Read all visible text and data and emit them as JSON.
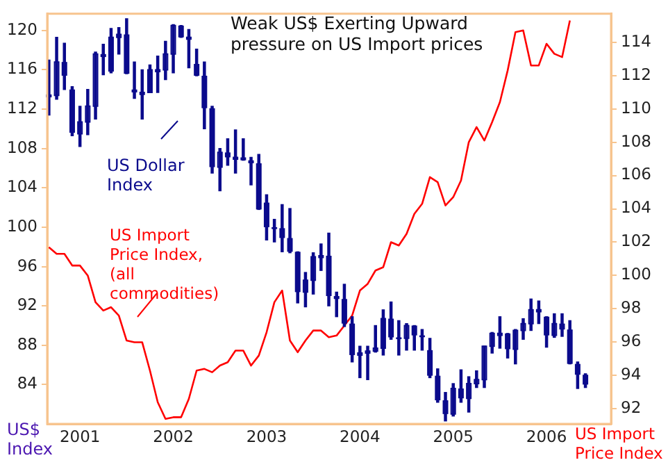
{
  "chart_data": {
    "type": "candlestick",
    "title": "Weak US$ Exerting Upward pressure on US Import prices",
    "ylabel": "US$ Index",
    "y2label": "US Import Price Index",
    "x": [
      "2000-09",
      "2000-10",
      "2000-11",
      "2000-12",
      "2001-01",
      "2001-02",
      "2001-03",
      "2001-04",
      "2001-05",
      "2001-06",
      "2001-07",
      "2001-08",
      "2001-09",
      "2001-10",
      "2001-11",
      "2001-12",
      "2002-01",
      "2002-02",
      "2002-03",
      "2002-04",
      "2002-05",
      "2002-06",
      "2002-07",
      "2002-08",
      "2002-09",
      "2002-10",
      "2002-11",
      "2002-12",
      "2003-01",
      "2003-02",
      "2003-03",
      "2003-04",
      "2003-05",
      "2003-06",
      "2003-07",
      "2003-08",
      "2003-09",
      "2003-10",
      "2003-11",
      "2003-12",
      "2004-01",
      "2004-02",
      "2004-03",
      "2004-04",
      "2004-05",
      "2004-06",
      "2004-07",
      "2004-08",
      "2004-09",
      "2004-10",
      "2004-11",
      "2004-12",
      "2005-01",
      "2005-02",
      "2005-03",
      "2005-04",
      "2005-05",
      "2005-06",
      "2005-07",
      "2005-08",
      "2005-09",
      "2005-10",
      "2005-11",
      "2005-12",
      "2006-01",
      "2006-02",
      "2006-03",
      "2006-04",
      "2006-05",
      "2006-06"
    ],
    "series": [
      {
        "color": "#0a0a8c",
        "ohlc": [
          [
            113.5,
            117.0,
            111.4,
            113.2
          ],
          [
            113.4,
            119.3,
            113.0,
            116.8
          ],
          [
            116.8,
            118.7,
            114.0,
            115.4
          ],
          [
            114.0,
            114.3,
            109.3,
            109.6
          ],
          [
            109.5,
            112.3,
            108.2,
            110.7
          ],
          [
            110.7,
            114.0,
            109.4,
            112.3
          ],
          [
            112.3,
            117.8,
            111.0,
            117.6
          ],
          [
            117.6,
            118.6,
            115.5,
            117.3
          ],
          [
            115.9,
            120.2,
            115.7,
            119.3
          ],
          [
            119.3,
            120.3,
            117.6,
            119.6
          ],
          [
            119.6,
            121.2,
            115.6,
            115.6
          ],
          [
            114.0,
            116.8,
            113.1,
            113.7
          ],
          [
            113.7,
            116.0,
            111.0,
            113.7
          ],
          [
            113.7,
            116.5,
            113.7,
            116.0
          ],
          [
            116.0,
            117.4,
            113.7,
            116.0
          ],
          [
            116.0,
            118.9,
            115.0,
            117.6
          ],
          [
            117.6,
            120.6,
            115.7,
            120.5
          ],
          [
            120.5,
            120.5,
            119.3,
            119.3
          ],
          [
            119.3,
            120.1,
            116.2,
            119.3
          ],
          [
            116.6,
            118.1,
            115.4,
            115.4
          ],
          [
            115.4,
            116.8,
            110.0,
            112.1
          ],
          [
            112.1,
            112.3,
            105.5,
            106.1
          ],
          [
            106.1,
            108.0,
            103.7,
            107.6
          ],
          [
            107.6,
            109.0,
            106.3,
            107.1
          ],
          [
            107.1,
            109.9,
            105.5,
            107.1
          ],
          [
            107.1,
            109.0,
            106.8,
            106.8
          ],
          [
            106.8,
            107.1,
            104.3,
            106.5
          ],
          [
            106.5,
            107.4,
            101.8,
            101.8
          ],
          [
            102.5,
            103.3,
            98.7,
            100.0
          ],
          [
            100.0,
            100.8,
            98.5,
            99.9
          ],
          [
            99.9,
            102.3,
            97.5,
            98.9
          ],
          [
            98.9,
            101.9,
            97.4,
            97.5
          ],
          [
            97.5,
            97.5,
            92.3,
            93.4
          ],
          [
            93.4,
            95.4,
            91.9,
            94.6
          ],
          [
            94.6,
            97.4,
            93.2,
            97.0
          ],
          [
            97.0,
            98.3,
            95.6,
            97.1
          ],
          [
            97.1,
            99.4,
            92.0,
            93.0
          ],
          [
            93.0,
            93.4,
            90.9,
            92.7
          ],
          [
            92.7,
            94.2,
            89.9,
            90.2
          ],
          [
            90.2,
            90.9,
            86.3,
            87.0
          ],
          [
            87.0,
            87.9,
            84.7,
            87.2
          ],
          [
            87.2,
            87.9,
            84.5,
            87.4
          ],
          [
            87.4,
            90.0,
            87.3,
            87.7
          ],
          [
            87.7,
            91.6,
            87.0,
            90.7
          ],
          [
            90.7,
            92.4,
            88.6,
            88.8
          ],
          [
            88.8,
            90.5,
            87.0,
            88.7
          ],
          [
            88.7,
            90.2,
            87.5,
            90.0
          ],
          [
            90.0,
            90.0,
            87.5,
            89.0
          ],
          [
            89.0,
            89.6,
            87.5,
            88.9
          ],
          [
            87.5,
            88.7,
            84.7,
            84.9
          ],
          [
            84.9,
            85.6,
            82.2,
            82.4
          ],
          [
            82.4,
            83.2,
            80.3,
            81.0
          ],
          [
            81.0,
            84.1,
            80.8,
            83.6
          ],
          [
            83.6,
            85.5,
            82.2,
            82.6
          ],
          [
            82.6,
            84.8,
            81.2,
            84.1
          ],
          [
            84.1,
            85.4,
            83.7,
            84.5
          ],
          [
            84.5,
            87.9,
            83.7,
            87.9
          ],
          [
            87.9,
            89.3,
            87.2,
            89.2
          ],
          [
            89.2,
            90.9,
            87.7,
            89.2
          ],
          [
            89.2,
            89.2,
            86.7,
            87.6
          ],
          [
            87.6,
            89.6,
            86.1,
            89.5
          ],
          [
            89.5,
            90.7,
            88.6,
            90.2
          ],
          [
            90.2,
            92.7,
            89.5,
            91.6
          ],
          [
            91.6,
            92.5,
            90.2,
            91.6
          ],
          [
            90.9,
            90.9,
            87.8,
            89.0
          ],
          [
            89.0,
            91.2,
            88.8,
            90.2
          ],
          [
            90.2,
            91.2,
            88.9,
            89.6
          ],
          [
            89.6,
            90.5,
            86.1,
            86.1
          ],
          [
            86.1,
            86.3,
            83.6,
            85.0
          ],
          [
            85.0,
            85.1,
            83.7,
            84.0
          ]
        ]
      },
      {
        "color": "#ff0000",
        "type": "line",
        "axis": "y2",
        "values": [
          101.7,
          101.3,
          101.3,
          100.6,
          100.6,
          100.0,
          98.4,
          97.9,
          98.1,
          97.6,
          96.1,
          96.0,
          96.0,
          94.3,
          92.4,
          91.4,
          91.5,
          91.5,
          92.6,
          94.3,
          94.4,
          94.2,
          94.6,
          94.8,
          95.5,
          95.5,
          94.6,
          95.2,
          96.6,
          98.4,
          99.1,
          96.1,
          95.4,
          96.1,
          96.7,
          96.7,
          96.3,
          96.4,
          97.0,
          97.6,
          99.1,
          99.5,
          100.3,
          100.5,
          102.0,
          101.8,
          102.5,
          103.7,
          104.3,
          105.9,
          105.6,
          104.2,
          104.7,
          105.7,
          108.0,
          108.9,
          108.1,
          109.2,
          110.4,
          112.3,
          114.6,
          114.7,
          112.6,
          112.6,
          113.9,
          113.3,
          113.1,
          115.3,
          null,
          null
        ]
      }
    ],
    "xlim": [
      "2000-08-25",
      "2006-09-10"
    ],
    "xticks": [
      "2001",
      "2002",
      "2003",
      "2004",
      "2005",
      "2006"
    ],
    "ylim": [
      80,
      121.7
    ],
    "yticks": [
      84,
      88,
      92,
      96,
      100,
      104,
      108,
      112,
      116,
      120
    ],
    "y2lim": [
      91.1,
      115.7
    ],
    "y2ticks": [
      92,
      94,
      96,
      98,
      100,
      102,
      104,
      106,
      108,
      110,
      112,
      114
    ],
    "annotations": [
      "US Dollar Index",
      "US Import Price Index, (all commodities)"
    ],
    "grid": false,
    "legend": false,
    "marker": "none",
    "line_style": "solid"
  }
}
